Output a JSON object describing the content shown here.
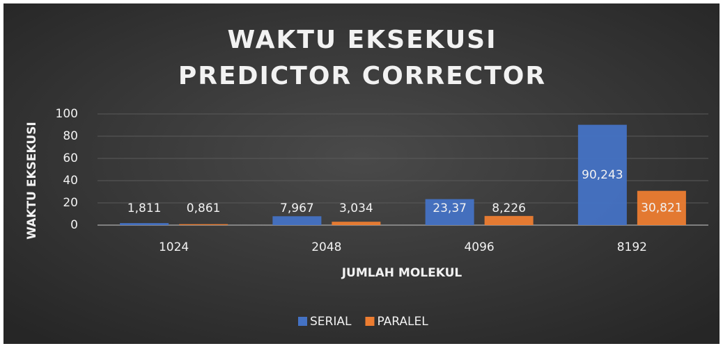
{
  "chart_data": {
    "type": "bar",
    "title": "WAKTU EKSEKUSI PREDICTOR CORRECTOR",
    "x_label": "JUMLAH MOLEKUL",
    "y_label": "WAKTU EKSEKUSI",
    "categories": [
      "1024",
      "2048",
      "4096",
      "8192"
    ],
    "series": [
      {
        "name": "SERIAL",
        "color": "#4472c4",
        "values": [
          1.811,
          7.967,
          23.37,
          90.243
        ],
        "value_labels": [
          "1,811",
          "7,967",
          "23,37",
          "90,243"
        ]
      },
      {
        "name": "PARALEL",
        "color": "#ed7d31",
        "values": [
          0.861,
          3.034,
          8.226,
          30.821
        ],
        "value_labels": [
          "0,861",
          "3,034",
          "8,226",
          "30,821"
        ]
      }
    ],
    "ylim": [
      0,
      100
    ],
    "yticks": [
      0,
      20,
      40,
      60,
      80,
      100
    ],
    "grid": true,
    "legend": "bottom"
  }
}
